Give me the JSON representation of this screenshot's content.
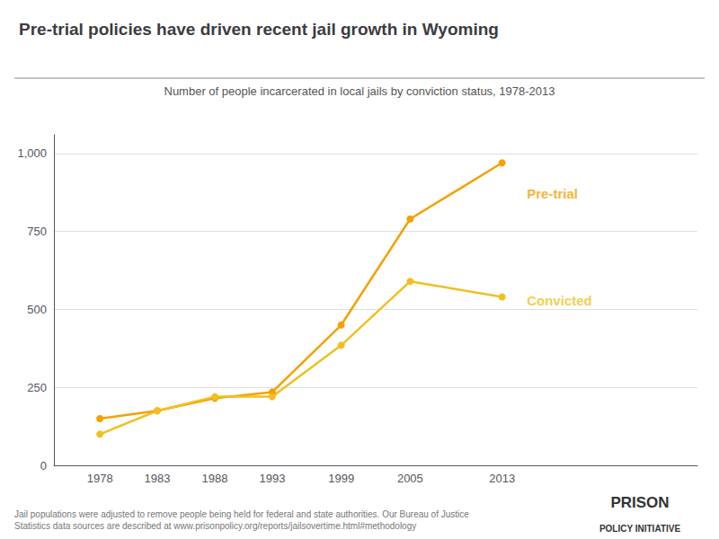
{
  "chart_data": {
    "type": "line",
    "title": "Pre-trial policies have driven recent jail growth in Wyoming",
    "subtitle": "Number of people incarcerated in local jails by conviction status, 1978-2013",
    "footnote": "Jail populations were adjusted to remove people being held for federal and state authorities. Our Bureau of Justice\nStatistics data sources are described at www.prisonpolicy.org/reports/jailsovertime.html#methodology",
    "logo": [
      "PRISON",
      "POLICY INITIATIVE"
    ],
    "x": [
      1978,
      1983,
      1988,
      1993,
      1999,
      2005,
      2013
    ],
    "series": [
      {
        "color": "#F5A000",
        "values": [
          150,
          175,
          215,
          235,
          450,
          790,
          970
        ]
      },
      {
        "color": "#F0C020",
        "values": [
          100,
          175,
          220,
          220,
          385,
          590,
          540
        ]
      }
    ],
    "annotations": [
      {
        "text": "Pre-trial",
        "x": 2015,
        "y": 870,
        "color": "#F5A000"
      },
      {
        "text": "Convicted",
        "x": 2015,
        "y": 530,
        "color": "#F0C020"
      }
    ],
    "xlim": [
      1974,
      2030
    ],
    "xticks": [
      1978,
      1983,
      1988,
      1993,
      1999,
      2005,
      2013
    ],
    "ylim": [
      0,
      1060
    ],
    "yticks": [
      0,
      250,
      500,
      750,
      {
        "value": 1000,
        "label": "1,000"
      }
    ],
    "grid": true,
    "marker": "circle"
  }
}
